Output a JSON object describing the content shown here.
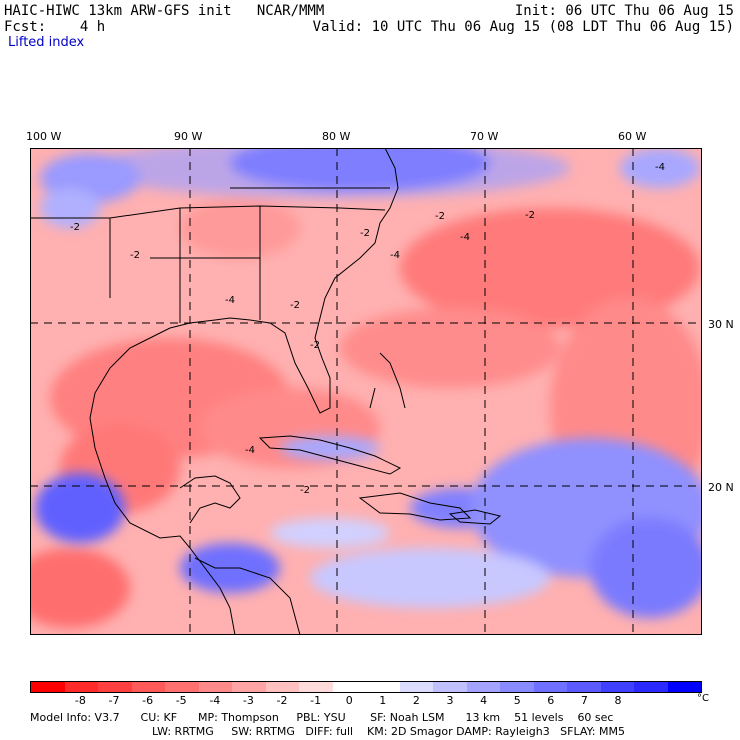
{
  "header": {
    "model_line": "HAIC-HIWC 13km ARW-GFS init   NCAR/MMM",
    "init": "Init: 06 UTC Thu 06 Aug 15",
    "fcst": "Fcst:    4 h",
    "valid": "Valid: 10 UTC Thu 06 Aug 15 (08 LDT Thu 06 Aug 15)",
    "field": "Lifted index"
  },
  "map": {
    "lon_labels": [
      "100 W",
      "90 W",
      "80 W",
      "70 W",
      "60 W"
    ],
    "lat_labels": [
      "30 N",
      "20 N"
    ],
    "contour_labels": [
      "-2",
      "-4"
    ]
  },
  "colorbar": {
    "ticks": [
      "-8",
      "-7",
      "-6",
      "-5",
      "-4",
      "-3",
      "-2",
      "-1",
      "0",
      "1",
      "2",
      "3",
      "4",
      "5",
      "6",
      "7",
      "8"
    ],
    "unit": "°C",
    "colors": [
      "#ff0000",
      "#ff2a2a",
      "#ff4040",
      "#ff5a5a",
      "#ff7070",
      "#ff8a8a",
      "#ffa4a4",
      "#ffc0c0",
      "#ffdcdc",
      "#ffffff",
      "#ffffff",
      "#dcdcff",
      "#c0c0ff",
      "#a4a4ff",
      "#8a8aff",
      "#7070ff",
      "#5a5aff",
      "#4040ff",
      "#2a2aff",
      "#0000ff"
    ]
  },
  "model_info": {
    "line1": "Model Info: V3.7      CU: KF      MP: Thompson     PBL: YSU       SF: Noah LSM      13 km    51 levels    60 sec",
    "line2": "LW: RRTMG     SW: RRTMG   DIFF: full    KM: 2D Smagor DAMP: Rayleigh3   SFLAY: MM5"
  }
}
